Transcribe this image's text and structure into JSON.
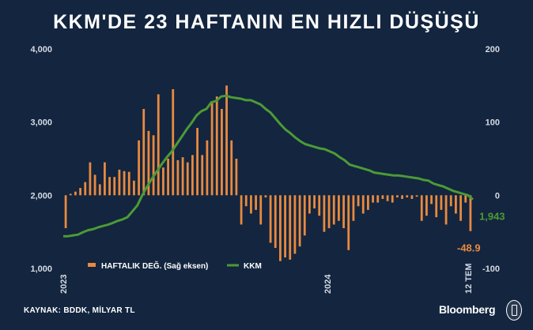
{
  "title": "KKM'DE 23 HAFTANIN EN HIZLI DÜŞÜŞÜ",
  "source": "KAYNAK: BDDK, MİLYAR TL",
  "brand": "Bloomberg",
  "colors": {
    "bar": "#e98a3f",
    "line": "#4c9a36",
    "background": "#13253f",
    "text": "#ffffff"
  },
  "chart_data": {
    "type": "bar+line",
    "left_axis": {
      "ticks": [
        "1,000",
        "2,000",
        "3,000",
        "4,000"
      ],
      "range": [
        1000,
        4000
      ]
    },
    "right_axis": {
      "ticks": [
        "-100",
        "0",
        "100",
        "200"
      ],
      "range": [
        -100,
        200
      ]
    },
    "x_tick_labels": [
      "2023",
      "2024",
      "12 TEM"
    ],
    "series": [
      {
        "name": "HAFTALIK DEĞ. (Sağ eksen)",
        "axis": "right",
        "type": "bar",
        "values": [
          -45,
          2,
          5,
          10,
          18,
          45,
          28,
          15,
          45,
          25,
          25,
          35,
          33,
          32,
          20,
          75,
          118,
          88,
          82,
          138,
          38,
          50,
          145,
          48,
          52,
          45,
          55,
          92,
          55,
          75,
          128,
          135,
          118,
          150,
          75,
          50,
          -40,
          -15,
          -25,
          -20,
          -40,
          -3,
          -65,
          -72,
          -90,
          -85,
          -88,
          -80,
          -70,
          -55,
          -25,
          -18,
          -28,
          -50,
          -45,
          -40,
          -35,
          -45,
          -75,
          -35,
          -15,
          -25,
          -20,
          -10,
          -10,
          -5,
          -8,
          -10,
          -3,
          -5,
          -3,
          -5,
          -2,
          -35,
          -28,
          -12,
          -30,
          -20,
          -40,
          -15,
          -25,
          -35,
          -10,
          -49
        ]
      },
      {
        "name": "KKM",
        "axis": "left",
        "type": "line",
        "values": [
          1440,
          1440,
          1452,
          1462,
          1495,
          1522,
          1535,
          1560,
          1580,
          1597,
          1620,
          1650,
          1670,
          1700,
          1780,
          1860,
          2000,
          2120,
          2230,
          2330,
          2430,
          2520,
          2600,
          2700,
          2800,
          2900,
          2990,
          3090,
          3150,
          3180,
          3270,
          3290,
          3350,
          3360,
          3340,
          3330,
          3320,
          3300,
          3300,
          3270,
          3240,
          3180,
          3130,
          3050,
          2970,
          2900,
          2850,
          2790,
          2740,
          2700,
          2680,
          2660,
          2640,
          2630,
          2600,
          2570,
          2520,
          2480,
          2420,
          2400,
          2380,
          2360,
          2340,
          2310,
          2300,
          2290,
          2280,
          2270,
          2270,
          2260,
          2250,
          2240,
          2230,
          2210,
          2200,
          2160,
          2140,
          2120,
          2090,
          2060,
          2040,
          2020,
          2000,
          1943
        ]
      }
    ],
    "end_labels": {
      "KKM": "1,943",
      "HAFTALIK DEĞ. (Sağ eksen)": "-48.9"
    },
    "grid": false,
    "legend": "bottom-left"
  }
}
